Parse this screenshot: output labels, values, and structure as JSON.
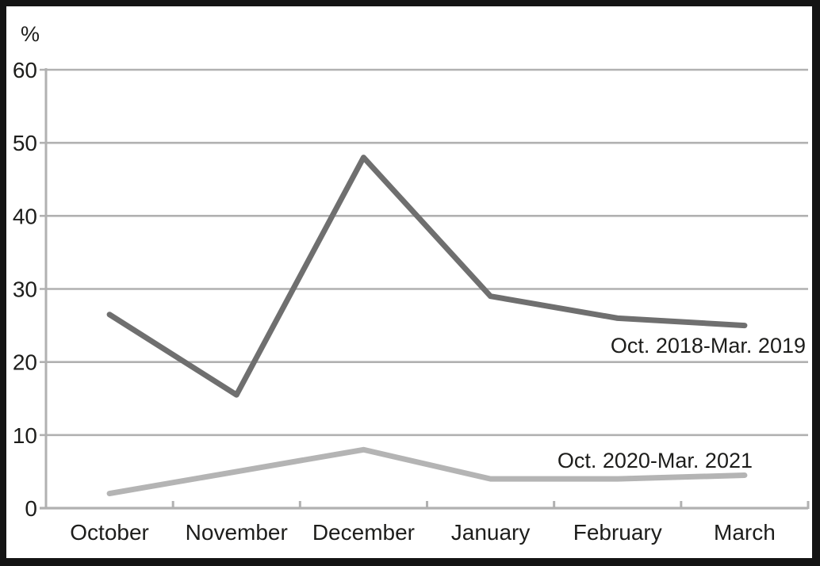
{
  "figure": {
    "background": "#ffffff",
    "border_color": "#141414"
  },
  "chart_data": {
    "type": "line",
    "title": "",
    "ylabel": "%",
    "xlabel": "",
    "categories": [
      "October",
      "November",
      "December",
      "January",
      "February",
      "March"
    ],
    "series": [
      {
        "name": "Oct. 2018-Mar. 2019",
        "values": [
          26.5,
          15.5,
          48,
          29,
          26,
          25
        ],
        "color": "#6f6f6f"
      },
      {
        "name": "Oct. 2020-Mar. 2021",
        "values": [
          2,
          5,
          8,
          4,
          4,
          4.5
        ],
        "color": "#b4b4b4"
      }
    ],
    "ylim": [
      0,
      60
    ],
    "yticks": [
      0,
      10,
      20,
      30,
      40,
      50,
      60
    ],
    "grid": true,
    "grid_color": "#b1b1b1",
    "axis_color": "#b1b1b1",
    "text_color": "#1d1d1b",
    "legend_position": "inline-annotations",
    "markers": false
  }
}
